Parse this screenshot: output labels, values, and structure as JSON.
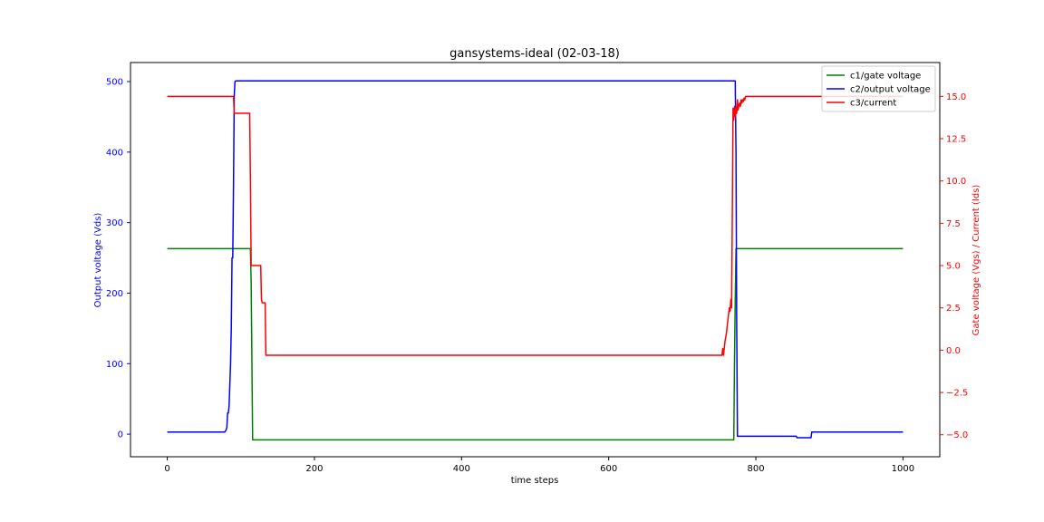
{
  "chart_data": {
    "type": "line",
    "title": "gansystems-ideal (02-03-18)",
    "xlabel": "time steps",
    "ylabel_left": "Output voltage (Vds)",
    "ylabel_right": "Gate voltage (Vgs) / Current (Ids)",
    "xlim": [
      -50,
      1050
    ],
    "ylim_left": [
      -32,
      527
    ],
    "ylim_right": [
      -6.3,
      17.0
    ],
    "xticks": [
      0,
      200,
      400,
      600,
      800,
      1000
    ],
    "yticks_left": [
      0,
      100,
      200,
      300,
      400,
      500
    ],
    "yticks_right": [
      -5.0,
      -2.5,
      0.0,
      2.5,
      5.0,
      7.5,
      10.0,
      12.5,
      15.0
    ],
    "yticks_right_labels": [
      "−5.0",
      "−2.5",
      "0.0",
      "2.5",
      "5.0",
      "7.5",
      "10.0",
      "12.5",
      "15.0"
    ],
    "grid": false,
    "legend_position": "top-right",
    "colors": {
      "left_axis": "#0000ff",
      "right_axis": "#ff0000"
    },
    "series": [
      {
        "name": "c1/gate voltage",
        "axis": "right",
        "color": "#008000",
        "x": [
          0,
          113,
          114,
          115,
          116,
          770,
          771,
          772,
          773,
          1000
        ],
        "y": [
          6.0,
          6.0,
          4.0,
          -0.5,
          -5.3,
          -5.3,
          -0.5,
          3.0,
          6.0,
          6.0
        ]
      },
      {
        "name": "c2/output voltage",
        "axis": "left",
        "color": "#0000ff",
        "x": [
          0,
          78,
          80,
          81,
          82,
          83,
          84,
          85,
          86,
          87,
          88,
          89,
          90,
          91,
          92,
          93,
          95,
          772,
          773,
          774,
          775,
          855,
          856,
          875,
          876,
          1000
        ],
        "y": [
          3,
          3,
          6,
          10,
          30,
          30,
          40,
          70,
          100,
          150,
          250,
          250,
          350,
          480,
          500,
          501,
          501,
          501,
          400,
          150,
          -3,
          -3,
          -5,
          -5,
          3,
          3
        ]
      },
      {
        "name": "c3/current",
        "axis": "right",
        "color": "#ff0000",
        "x": [
          0,
          90,
          91,
          92,
          112,
          113,
          114,
          115,
          127,
          128,
          129,
          133,
          134,
          135,
          754,
          755,
          756,
          757,
          758,
          760,
          762,
          764,
          765,
          766,
          767,
          768,
          769,
          770,
          771,
          772,
          773,
          774,
          775,
          776,
          777,
          778,
          779,
          780,
          781,
          782,
          783,
          784,
          785,
          786,
          787,
          788,
          789,
          790,
          1000
        ],
        "y": [
          15,
          15,
          14,
          14,
          14,
          10,
          5,
          5,
          5,
          3,
          2.8,
          2.8,
          -0.3,
          -0.3,
          -0.3,
          0.1,
          -0.3,
          0.1,
          0.5,
          1.0,
          1.8,
          2.5,
          2.3,
          3.0,
          2.5,
          8,
          14.3,
          13.6,
          14.4,
          13.8,
          14.3,
          14.0,
          14.8,
          14.2,
          14.5,
          14.6,
          14.4,
          14.8,
          14.6,
          14.8,
          14.7,
          14.9,
          14.8,
          15,
          15,
          15,
          15,
          15,
          15
        ]
      }
    ]
  }
}
